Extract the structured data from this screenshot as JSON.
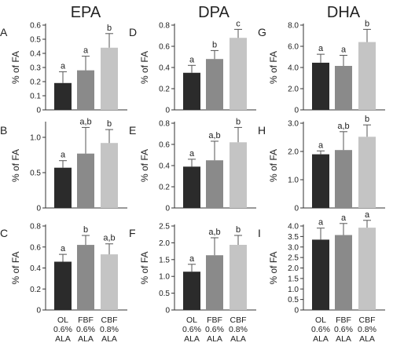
{
  "categories": [
    {
      "lines": [
        "OL",
        "0.6%",
        "ALA"
      ]
    },
    {
      "lines": [
        "FBF",
        "0.6%",
        "ALA"
      ]
    },
    {
      "lines": [
        "CBF",
        "0.8%",
        "ALA"
      ]
    }
  ],
  "colors": {
    "bars": [
      "#2b2b2b",
      "#8a8a8a",
      "#c4c4c4"
    ],
    "error": "#555555",
    "axis": "#333333"
  },
  "columns": [
    "EPA",
    "DPA",
    "DHA"
  ],
  "chart_data": [
    {
      "type": "bar",
      "column": "EPA",
      "letter": "A",
      "ylabel": "% of FA",
      "ylim": [
        0,
        0.6
      ],
      "yticks": [
        "0",
        "0.1",
        "0.2",
        "0.3",
        "0.4",
        "0.5",
        "0.6"
      ],
      "yticks_values": [
        0,
        0.1,
        0.2,
        0.3,
        0.4,
        0.5,
        0.6
      ],
      "values": [
        0.19,
        0.28,
        0.44
      ],
      "errors": [
        0.08,
        0.1,
        0.1
      ],
      "significance": [
        "a",
        "a",
        "b"
      ]
    },
    {
      "type": "bar",
      "column": "DPA",
      "letter": "D",
      "ylabel": "% of FA",
      "ylim": [
        0,
        0.8
      ],
      "yticks": [
        "0",
        "0.2",
        "0.4",
        "0.6",
        "0.8"
      ],
      "yticks_values": [
        0,
        0.2,
        0.4,
        0.6,
        0.8
      ],
      "values": [
        0.35,
        0.48,
        0.68
      ],
      "errors": [
        0.07,
        0.08,
        0.08
      ],
      "significance": [
        "a",
        "b",
        "c"
      ]
    },
    {
      "type": "bar",
      "column": "DHA",
      "letter": "G",
      "ylabel": "% of FA",
      "ylim": [
        0,
        8.0
      ],
      "yticks": [
        "0",
        "2.0",
        "4.0",
        "6.0",
        "8.0"
      ],
      "yticks_values": [
        0,
        2,
        4,
        6,
        8
      ],
      "values": [
        4.45,
        4.15,
        6.4
      ],
      "errors": [
        0.8,
        1.0,
        1.2
      ],
      "significance": [
        "a",
        "a",
        "b"
      ]
    },
    {
      "type": "bar",
      "column": "EPA",
      "letter": "B",
      "ylabel": "% of FA",
      "ylim": [
        0,
        1.2
      ],
      "yticks": [
        "0",
        "0.5",
        "1.0"
      ],
      "yticks_values": [
        0,
        0.5,
        1.0
      ],
      "values": [
        0.57,
        0.77,
        0.92
      ],
      "errors": [
        0.1,
        0.37,
        0.19
      ],
      "significance": [
        "a",
        "a,b",
        "b"
      ]
    },
    {
      "type": "bar",
      "column": "DPA",
      "letter": "E",
      "ylabel": "% of FA",
      "ylim": [
        0,
        0.8
      ],
      "yticks": [
        "0",
        "0.2",
        "0.4",
        "0.6",
        "0.8"
      ],
      "yticks_values": [
        0,
        0.2,
        0.4,
        0.6,
        0.8
      ],
      "values": [
        0.39,
        0.45,
        0.62
      ],
      "errors": [
        0.07,
        0.18,
        0.14
      ],
      "significance": [
        "a",
        "a,b",
        "b"
      ]
    },
    {
      "type": "bar",
      "column": "DHA",
      "letter": "H",
      "ylabel": "% of FA",
      "ylim": [
        0,
        3.0
      ],
      "yticks": [
        "0",
        "1.0",
        "2.0",
        "3.0"
      ],
      "yticks_values": [
        0,
        1,
        2,
        3
      ],
      "values": [
        1.9,
        2.05,
        2.52
      ],
      "errors": [
        0.12,
        0.65,
        0.42
      ],
      "significance": [
        "a",
        "a,b",
        "b"
      ]
    },
    {
      "type": "bar",
      "column": "EPA",
      "letter": "C",
      "ylabel": "% of FA",
      "ylim": [
        0,
        0.8
      ],
      "yticks": [
        "0",
        "0.2",
        "0.4",
        "0.6",
        "0.8"
      ],
      "yticks_values": [
        0,
        0.2,
        0.4,
        0.6,
        0.8
      ],
      "values": [
        0.46,
        0.62,
        0.53
      ],
      "errors": [
        0.07,
        0.09,
        0.1
      ],
      "significance": [
        "a",
        "b",
        "a,b"
      ]
    },
    {
      "type": "bar",
      "column": "DPA",
      "letter": "F",
      "ylabel": "% of FA",
      "ylim": [
        0,
        2.5
      ],
      "yticks": [
        "0",
        "0.5",
        "1.0",
        "1.5",
        "2.0",
        "2.5"
      ],
      "yticks_values": [
        0,
        0.5,
        1.0,
        1.5,
        2.0,
        2.5
      ],
      "values": [
        1.14,
        1.63,
        1.94
      ],
      "errors": [
        0.22,
        0.52,
        0.28
      ],
      "significance": [
        "a",
        "a,b",
        "b"
      ]
    },
    {
      "type": "bar",
      "column": "DHA",
      "letter": "I",
      "ylabel": "% of FA",
      "ylim": [
        0,
        4.0
      ],
      "yticks": [
        "0",
        "0.5",
        "1.0",
        "1.5",
        "2.0",
        "2.5",
        "3.0",
        "3.5",
        "4.0"
      ],
      "yticks_values": [
        0,
        0.5,
        1.0,
        1.5,
        2.0,
        2.5,
        3.0,
        3.5,
        4.0
      ],
      "values": [
        3.35,
        3.57,
        3.92
      ],
      "errors": [
        0.55,
        0.55,
        0.35
      ],
      "significance": [
        "a",
        "a",
        "a"
      ]
    }
  ]
}
